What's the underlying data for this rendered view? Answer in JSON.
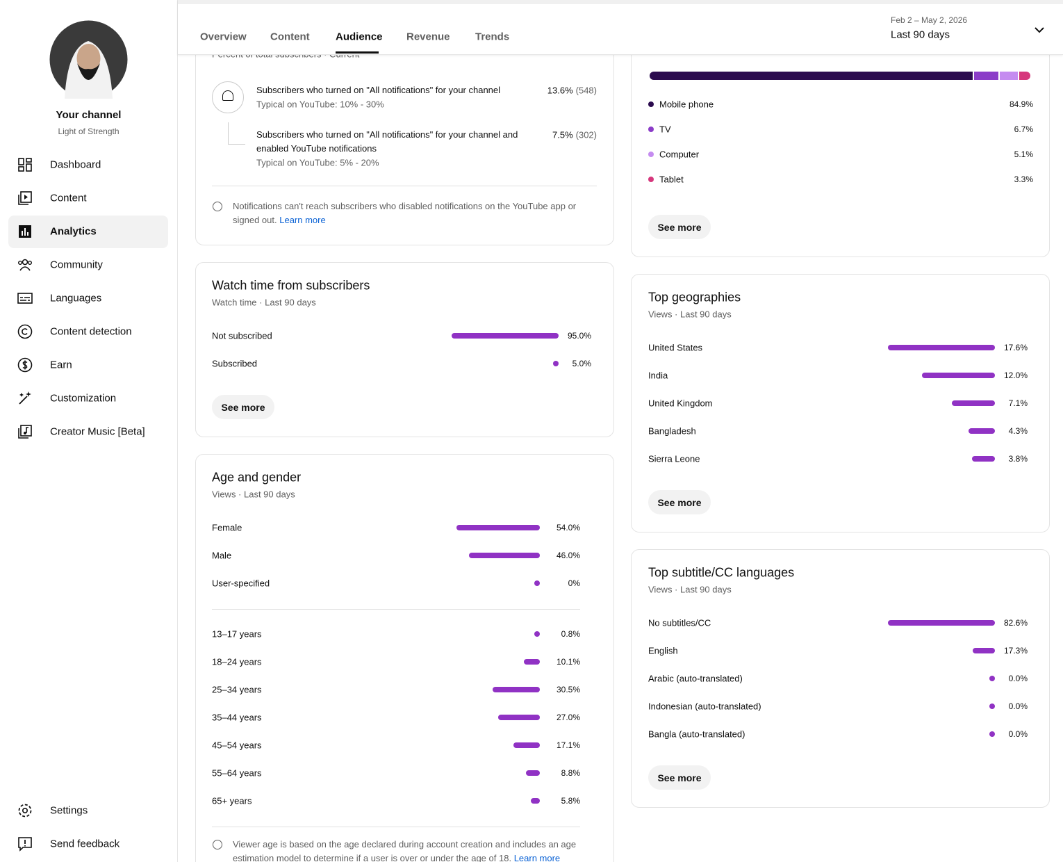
{
  "sidebar": {
    "channel_title": "Your channel",
    "channel_name": "Light of Strength",
    "nav": [
      "Dashboard",
      "Content",
      "Analytics",
      "Community",
      "Languages",
      "Content detection",
      "Earn",
      "Customization",
      "Creator Music [Beta]"
    ],
    "bottom": [
      "Settings",
      "Send feedback"
    ]
  },
  "tabs": [
    "Overview",
    "Content",
    "Audience",
    "Revenue",
    "Trends"
  ],
  "date_range": {
    "dates": "Feb 2 – May 2, 2026",
    "label": "Last 90 days"
  },
  "notifications": {
    "subtitle": "Percent of total subscribers · Current",
    "rows": [
      {
        "text": "Subscribers who turned on \"All notifications\" for your channel",
        "typical": "Typical on YouTube: 10% - 30%",
        "value_label": "13.6%",
        "count": "(548)"
      },
      {
        "text": "Subscribers who turned on \"All notifications\" for your channel and enabled YouTube notifications",
        "typical": "Typical on YouTube: 5% - 20%",
        "value_label": "7.5%",
        "count": "(302)"
      }
    ],
    "note": "Notifications can't reach subscribers who disabled notifications on the YouTube app or signed out.",
    "link": "Learn more"
  },
  "watch_time": {
    "title": "Watch time from subscribers",
    "subtitle": "Watch time · Last 90 days",
    "rows": [
      {
        "label": "Not subscribed",
        "value": 95,
        "value_label": "95.0%"
      },
      {
        "label": "Subscribed",
        "value": 5,
        "value_label": "5.0%"
      }
    ],
    "button": "See more"
  },
  "age_gender": {
    "title": "Age and gender",
    "subtitle": "Views · Last 90 days",
    "gender": [
      {
        "label": "Female",
        "value": 54,
        "value_label": "54.0%"
      },
      {
        "label": "Male",
        "value": 46,
        "value_label": "46.0%"
      },
      {
        "label": "User-specified",
        "value": 0,
        "value_label": "0%"
      }
    ],
    "ages": [
      {
        "label": "13–17 years",
        "value": 0.8,
        "value_label": "0.8%"
      },
      {
        "label": "18–24 years",
        "value": 10.1,
        "value_label": "10.1%"
      },
      {
        "label": "25–34 years",
        "value": 30.5,
        "value_label": "30.5%"
      },
      {
        "label": "35–44 years",
        "value": 27,
        "value_label": "27.0%"
      },
      {
        "label": "45–54 years",
        "value": 17.1,
        "value_label": "17.1%"
      },
      {
        "label": "55–64 years",
        "value": 8.8,
        "value_label": "8.8%"
      },
      {
        "label": "65+ years",
        "value": 5.8,
        "value_label": "5.8%"
      }
    ],
    "note": "Viewer age is based on the age declared during account creation and includes an age estimation model to determine if a user is over or under the age of 18.",
    "link": "Learn more"
  },
  "devices": {
    "rows": [
      {
        "label": "Mobile phone",
        "value": 84.9,
        "value_label": "84.9%",
        "color": "#2b0b4e"
      },
      {
        "label": "TV",
        "value": 6.7,
        "value_label": "6.7%",
        "color": "#8b3cc8"
      },
      {
        "label": "Computer",
        "value": 5.1,
        "value_label": "5.1%",
        "color": "#c58cf0"
      },
      {
        "label": "Tablet",
        "value": 3.3,
        "value_label": "3.3%",
        "color": "#d6377c"
      }
    ],
    "button": "See more"
  },
  "geographies": {
    "title": "Top geographies",
    "subtitle": "Views · Last 90 days",
    "rows": [
      {
        "label": "United States",
        "value": 17.6,
        "value_label": "17.6%"
      },
      {
        "label": "India",
        "value": 12,
        "value_label": "12.0%"
      },
      {
        "label": "United Kingdom",
        "value": 7.1,
        "value_label": "7.1%"
      },
      {
        "label": "Bangladesh",
        "value": 4.3,
        "value_label": "4.3%"
      },
      {
        "label": "Sierra Leone",
        "value": 3.8,
        "value_label": "3.8%"
      }
    ],
    "button": "See more"
  },
  "subtitles": {
    "title": "Top subtitle/CC languages",
    "subtitle": "Views · Last 90 days",
    "rows": [
      {
        "label": "No subtitles/CC",
        "value": 82.6,
        "value_label": "82.6%"
      },
      {
        "label": "English",
        "value": 17.3,
        "value_label": "17.3%"
      },
      {
        "label": "Arabic (auto-translated)",
        "value": 0,
        "value_label": "0.0%"
      },
      {
        "label": "Indonesian (auto-translated)",
        "value": 0,
        "value_label": "0.0%"
      },
      {
        "label": "Bangla (auto-translated)",
        "value": 0,
        "value_label": "0.0%"
      }
    ],
    "button": "See more"
  }
}
